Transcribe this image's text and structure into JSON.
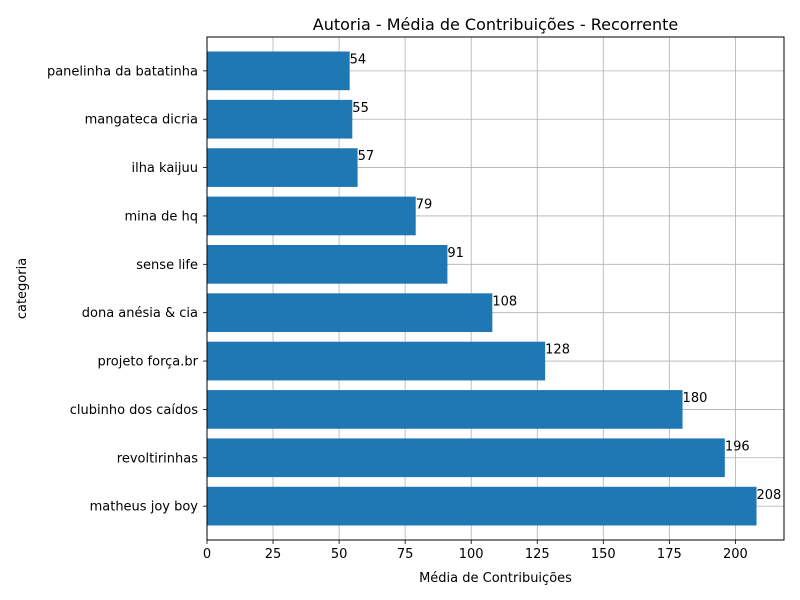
{
  "chart_data": {
    "type": "bar",
    "orientation": "horizontal",
    "title": "Autoria - Média de Contribuições - Recorrente",
    "xlabel": "Média de Contribuições",
    "ylabel": "categoria",
    "categories": [
      "matheus joy boy",
      "revoltirinhas",
      "clubinho dos caídos",
      "projeto força.br",
      "dona anésia & cia",
      "sense life",
      "mina de hq",
      "ilha kaijuu",
      "mangateca dicria",
      "panelinha da batatinha"
    ],
    "values": [
      208,
      196,
      180,
      128,
      108,
      91,
      79,
      57,
      55,
      54
    ],
    "data_labels": [
      "208",
      "196",
      "180",
      "128",
      "108",
      "91",
      "79",
      "57",
      "55",
      "54"
    ],
    "xlim": [
      0,
      218.4
    ],
    "xticks": [
      0,
      25,
      50,
      75,
      100,
      125,
      150,
      175,
      200
    ],
    "xtick_labels": [
      "0",
      "25",
      "50",
      "75",
      "100",
      "125",
      "150",
      "175",
      "200"
    ],
    "grid": true,
    "bar_color": "#1f77b4",
    "grid_color": "#b0b0b0"
  }
}
